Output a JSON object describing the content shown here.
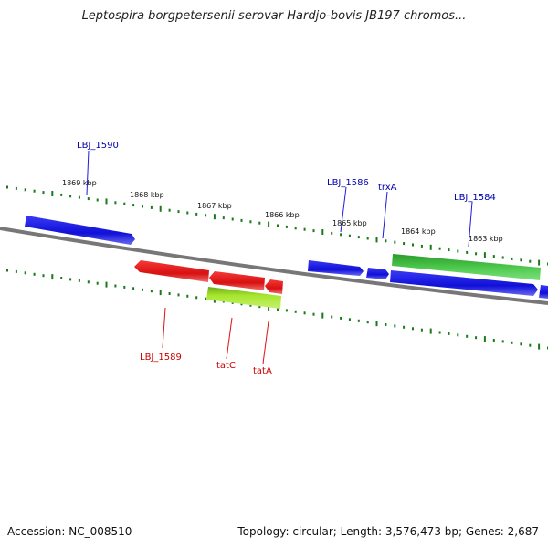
{
  "title": "Leptospira borgpetersenii serovar Hardjo-bovis JB197 chromos...",
  "footer": {
    "accession": "Accession: NC_008510",
    "summary": "Topology: circular; Length: 3,576,473 bp; Genes: 2,687"
  },
  "colors": {
    "forward_gene": "#1a1ae0",
    "reverse_gene": "#e01010",
    "rna_gene_top": "#3cb83c",
    "rna_gene_bottom": "#a6e62e",
    "backbone": "#777777",
    "tick": "#1a7a1a",
    "forward_label": "#0000aa",
    "reverse_label": "#cc0000"
  },
  "scale_labels": [
    "1869 kbp",
    "1868 kbp",
    "1867 kbp",
    "1866 kbp",
    "1865 kbp",
    "1864 kbp",
    "1863 kbp"
  ],
  "gene_labels": {
    "forward": [
      "LBJ_1590",
      "LBJ_1586",
      "trxA",
      "LBJ_1584"
    ],
    "reverse": [
      "LBJ_1589",
      "tatC",
      "tatA"
    ]
  }
}
